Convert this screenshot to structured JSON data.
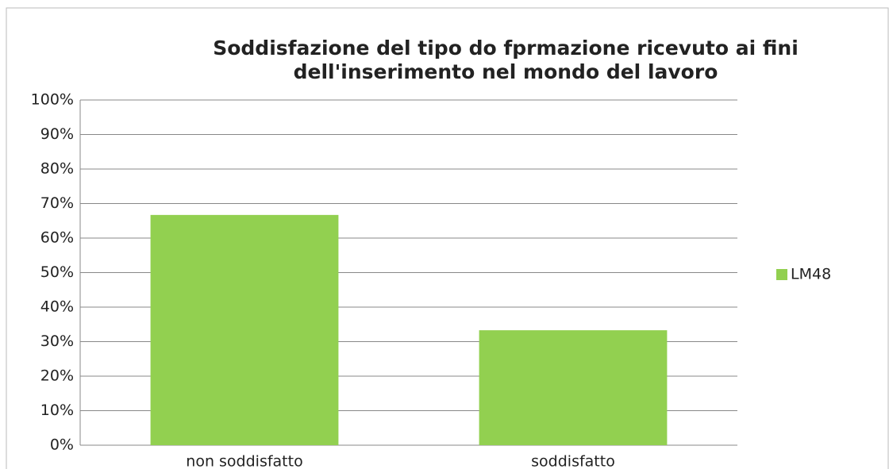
{
  "chart_data": {
    "type": "bar",
    "title": "Soddisfazione del tipo do fprmazione ricevuto ai fini dell'inserimento nel mondo del lavoro",
    "categories": [
      "non soddisfatto",
      "soddisfatto"
    ],
    "series": [
      {
        "name": "LM48",
        "color": "#92d050",
        "values": [
          66.7,
          33.3
        ]
      }
    ],
    "ylim": [
      0,
      100
    ],
    "yticks": [
      {
        "value": 0,
        "label": "0%"
      },
      {
        "value": 10,
        "label": "10%"
      },
      {
        "value": 20,
        "label": "20%"
      },
      {
        "value": 30,
        "label": "30%"
      },
      {
        "value": 40,
        "label": "40%"
      },
      {
        "value": 50,
        "label": "50%"
      },
      {
        "value": 60,
        "label": "60%"
      },
      {
        "value": 70,
        "label": "70%"
      },
      {
        "value": 80,
        "label": "80%"
      },
      {
        "value": 90,
        "label": "90%"
      },
      {
        "value": 100,
        "label": "100%"
      }
    ],
    "grid": true,
    "legend": "right"
  }
}
